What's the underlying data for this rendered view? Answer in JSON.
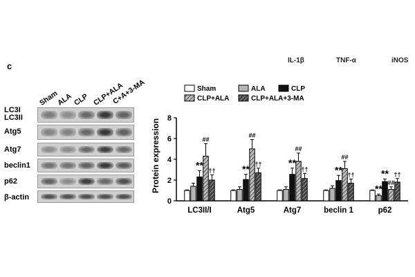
{
  "panel_label": "c",
  "top_cutoff_labels": [
    "IL-1β",
    "TNF-α",
    "iNOS"
  ],
  "blot": {
    "lanes": [
      "Sham",
      "ALA",
      "CLP",
      "CLP+ALA",
      "C+A+3-MA"
    ],
    "rows": [
      {
        "label": "LC3I\nLC3II",
        "intensity": [
          0.45,
          0.35,
          0.55,
          0.85,
          0.6
        ]
      },
      {
        "label": "Atg5",
        "intensity": [
          0.4,
          0.4,
          0.55,
          0.85,
          0.6
        ]
      },
      {
        "label": "Atg7",
        "intensity": [
          0.35,
          0.35,
          0.55,
          0.8,
          0.55
        ]
      },
      {
        "label": "beclin1",
        "intensity": [
          0.5,
          0.5,
          0.6,
          0.85,
          0.65
        ]
      },
      {
        "label": "p62",
        "intensity": [
          0.6,
          0.35,
          0.8,
          0.55,
          0.7
        ]
      },
      {
        "label": "β-actin",
        "intensity": [
          0.7,
          0.7,
          0.7,
          0.7,
          0.7
        ]
      }
    ]
  },
  "chart_data": {
    "type": "bar",
    "ylabel": "Protein expression",
    "ylim": [
      0,
      8
    ],
    "yticks": [
      0,
      2,
      4,
      6,
      8
    ],
    "categories": [
      "LC3II/I",
      "Atg5",
      "Atg7",
      "beclin 1",
      "p62"
    ],
    "legend_position": "top",
    "series": [
      {
        "name": "Sham",
        "pattern": "white",
        "values": [
          1.0,
          1.0,
          1.0,
          1.0,
          1.0
        ],
        "errors": [
          0.05,
          0.05,
          0.05,
          0.05,
          0.05
        ],
        "marks": [
          "",
          "",
          "",
          "",
          ""
        ]
      },
      {
        "name": "ALA",
        "pattern": "gray",
        "values": [
          1.4,
          1.1,
          1.1,
          1.2,
          0.5
        ],
        "errors": [
          0.3,
          0.25,
          0.25,
          0.25,
          0.15
        ],
        "marks": [
          "",
          "",
          "",
          "",
          "**"
        ]
      },
      {
        "name": "CLP",
        "pattern": "black",
        "values": [
          2.3,
          2.05,
          2.55,
          1.95,
          1.85
        ],
        "errors": [
          0.6,
          0.5,
          0.6,
          0.5,
          0.25
        ],
        "marks": [
          "**",
          "**",
          "**",
          "**",
          "**"
        ]
      },
      {
        "name": "CLP+ALA",
        "pattern": "hatch",
        "values": [
          4.3,
          5.0,
          3.8,
          3.1,
          1.1
        ],
        "errors": [
          1.2,
          0.9,
          0.8,
          0.7,
          0.25
        ],
        "marks": [
          "##",
          "##",
          "##",
          "##",
          "##"
        ]
      },
      {
        "name": "CLP+ALA+3-MA",
        "pattern": "darkhatch",
        "values": [
          2.0,
          2.7,
          2.15,
          1.7,
          1.8
        ],
        "errors": [
          0.5,
          0.45,
          0.5,
          0.4,
          0.35
        ],
        "marks": [
          "††",
          "††",
          "††",
          "††",
          "††"
        ]
      }
    ]
  }
}
